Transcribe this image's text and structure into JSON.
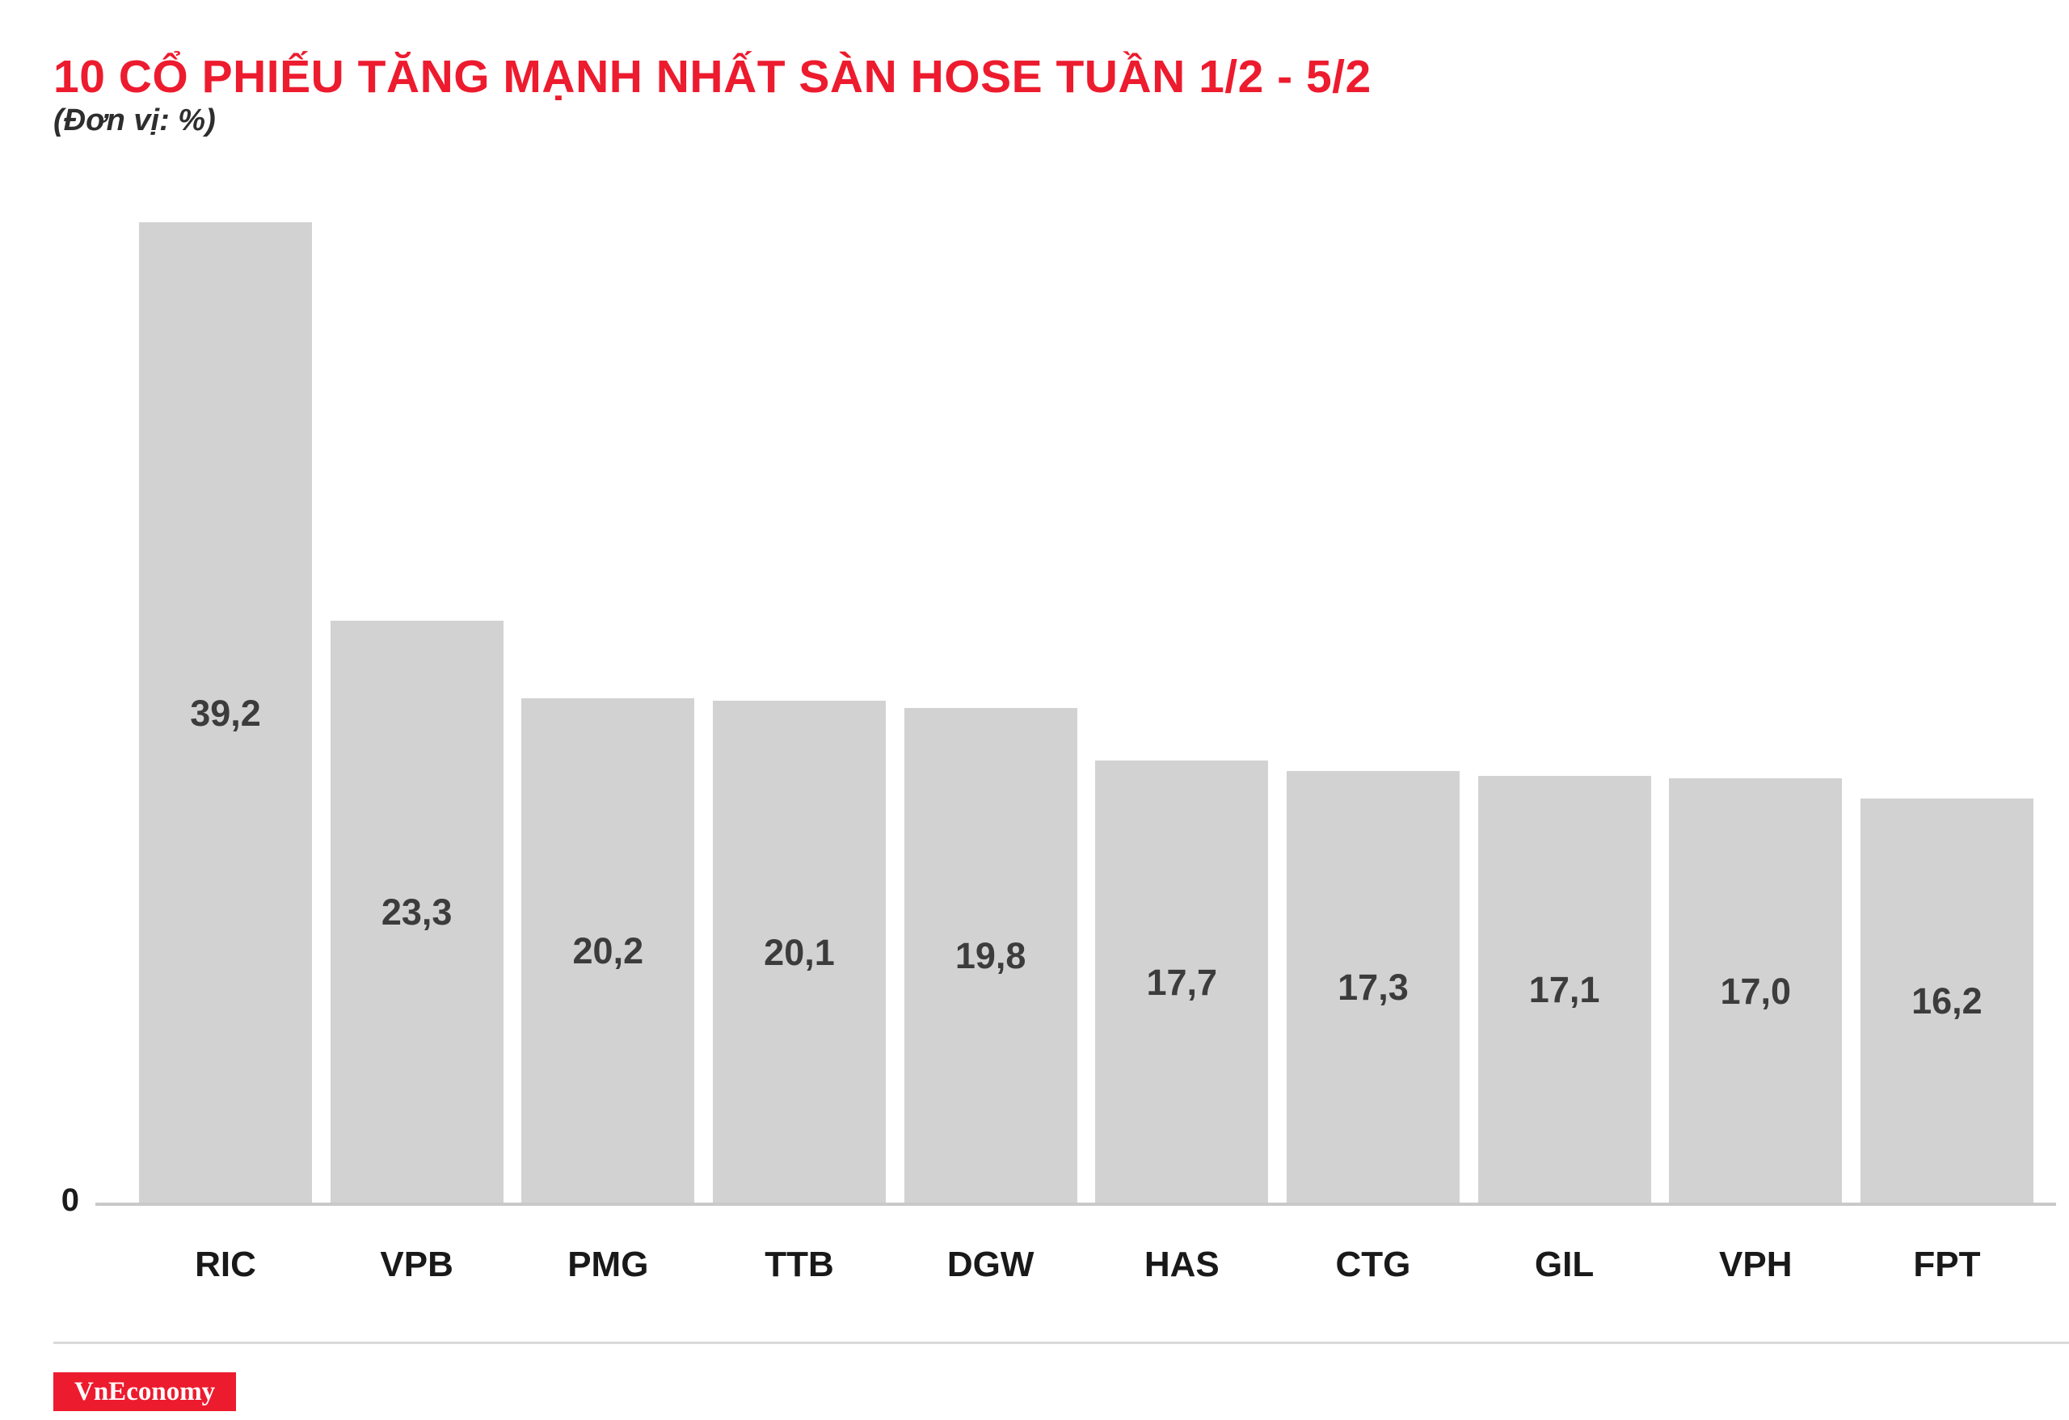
{
  "chart_data": {
    "type": "bar",
    "title": "10 CỔ PHIẾU TĂNG MẠNH NHẤT SÀN HOSE TUẦN 1/2 - 5/2",
    "unit_label": "(Đơn vị: %)",
    "categories": [
      "RIC",
      "VPB",
      "PMG",
      "TTB",
      "DGW",
      "HAS",
      "CTG",
      "GIL",
      "VPH",
      "FPT"
    ],
    "values": [
      39.2,
      23.3,
      20.2,
      20.1,
      19.8,
      17.7,
      17.3,
      17.1,
      17.0,
      16.2
    ],
    "value_labels": [
      "39,2",
      "23,3",
      "20,2",
      "20,1",
      "19,8",
      "17,7",
      "17,3",
      "17,1",
      "17,0",
      "16,2"
    ],
    "xlabel": "",
    "ylabel": "%",
    "ylim": [
      0,
      39.2
    ],
    "y_zero_label": "0",
    "grid": false,
    "legend": false,
    "layout_hints": {
      "value_label_position": "centered-inside-bar",
      "orientation": "vertical"
    },
    "colors": {
      "bar": "#d2d2d2",
      "title": "#ed1b2e",
      "value_label": "#3c3c3c",
      "category_label": "#191919",
      "axis_line": "#c9c9c9"
    }
  },
  "footer": {
    "logo_text": "VnEconomy",
    "logo_bg": "#ed1b2e",
    "logo_text_color": "#ffffff"
  }
}
